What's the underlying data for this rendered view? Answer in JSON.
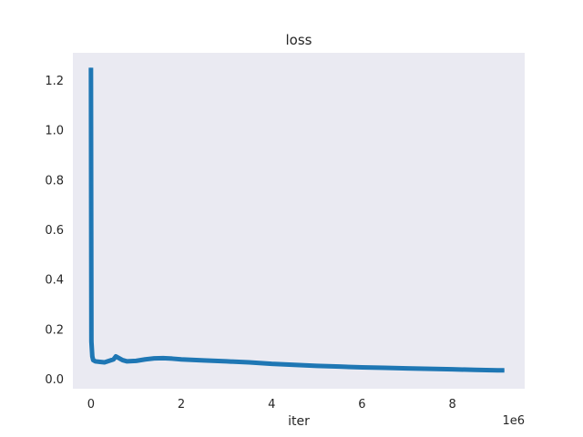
{
  "chart_data": {
    "type": "line",
    "title": "loss",
    "xlabel": "iter",
    "ylabel": "",
    "x_offset_label": "1e6",
    "xlim": [
      -400000,
      9600000
    ],
    "ylim": [
      -0.04,
      1.31
    ],
    "x_ticks": [
      0,
      2000000,
      4000000,
      6000000,
      8000000
    ],
    "x_tick_labels": [
      "0",
      "2",
      "4",
      "6",
      "8"
    ],
    "y_ticks": [
      0.0,
      0.2,
      0.4,
      0.6,
      0.8,
      1.0,
      1.2
    ],
    "y_tick_labels": [
      "0.0",
      "0.2",
      "0.4",
      "0.6",
      "0.8",
      "1.0",
      "1.2"
    ],
    "grid": false,
    "background_color": "#eaeaf2",
    "series": [
      {
        "color": "#1f77b4",
        "x": [
          0,
          10000,
          20000,
          30000,
          50000,
          100000,
          200000,
          300000,
          400000,
          500000,
          550000,
          600000,
          700000,
          800000,
          1000000,
          1200000,
          1400000,
          1600000,
          1800000,
          2000000,
          2500000,
          3000000,
          3500000,
          4000000,
          4500000,
          5000000,
          5500000,
          6000000,
          6500000,
          7000000,
          7500000,
          8000000,
          8500000,
          9000000,
          9150000
        ],
        "y": [
          1.25,
          0.15,
          0.12,
          0.09,
          0.075,
          0.07,
          0.068,
          0.066,
          0.072,
          0.078,
          0.09,
          0.085,
          0.075,
          0.07,
          0.072,
          0.078,
          0.082,
          0.083,
          0.081,
          0.078,
          0.074,
          0.07,
          0.066,
          0.06,
          0.056,
          0.052,
          0.049,
          0.046,
          0.044,
          0.042,
          0.04,
          0.038,
          0.036,
          0.034,
          0.034
        ]
      }
    ]
  }
}
